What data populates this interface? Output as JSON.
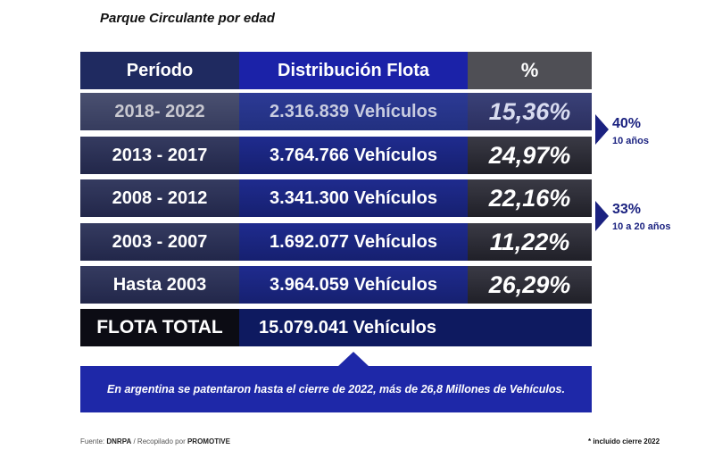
{
  "title": "Parque Circulante por edad",
  "table": {
    "header": [
      "Período",
      "Distribución Flota",
      "%"
    ],
    "rows": [
      [
        "2018- 2022",
        "2.316.839 Vehículos",
        "15,36%"
      ],
      [
        "2013 - 2017",
        "3.764.766 Vehículos",
        "24,97%"
      ],
      [
        "2008 - 2012",
        "3.341.300 Vehículos",
        "22,16%"
      ],
      [
        "2003 - 2007",
        "1.692.077 Vehículos",
        "11,22%"
      ],
      [
        "Hasta 2003",
        "3.964.059 Vehículos",
        "26,29%"
      ]
    ],
    "total": [
      "FLOTA TOTAL",
      "15.079.041 Vehículos"
    ]
  },
  "note": "En argentina se patentaron hasta el cierre de 2022, más de 26,8 Millones de Vehículos.",
  "annotations": [
    {
      "value": "40%",
      "label": "10 años"
    },
    {
      "value": "33%",
      "label": "10 a 20 años"
    }
  ],
  "footer": {
    "source_label": "Fuente:",
    "source": "DNRPA",
    "compiled_label": "/ Recopilado por",
    "compiler": "PROMOTIVE",
    "footnote": "* incluido cierre 2022"
  }
}
